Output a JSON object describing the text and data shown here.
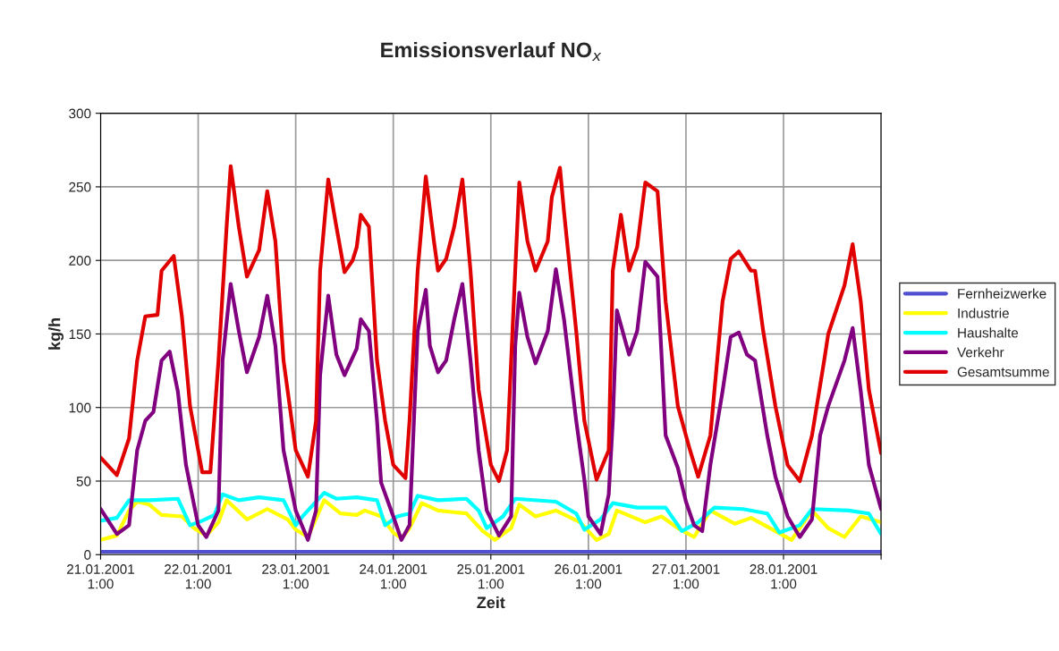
{
  "chart_data": {
    "type": "line",
    "title": "Emissionsverlauf NO$_{x}$",
    "xlabel": "Zeit",
    "ylabel": "kg/h",
    "xlim": [
      "2001-01-21T01:00",
      "2001-01-29T01:00"
    ],
    "xticks": [
      {
        "value": "2001-01-21T01:00",
        "label": "21.01.2001\n1:00"
      },
      {
        "value": "2001-01-22T01:00",
        "label": "22.01.2001\n1:00"
      },
      {
        "value": "2001-01-23T01:00",
        "label": "23.01.2001\n1:00"
      },
      {
        "value": "2001-01-24T01:00",
        "label": "24.01.2001\n1:00"
      },
      {
        "value": "2001-01-25T01:00",
        "label": "25.01.2001\n1:00"
      },
      {
        "value": "2001-01-26T01:00",
        "label": "26.01.2001\n1:00"
      },
      {
        "value": "2001-01-27T01:00",
        "label": "27.01.2001\n1:00"
      },
      {
        "value": "2001-01-28T01:00",
        "label": "28.01.2001\n1:00"
      },
      {
        "value": "2001-01-29T01:00",
        "label": null
      }
    ],
    "ylim": [
      0,
      300
    ],
    "yticks": [
      0,
      50,
      100,
      150,
      200,
      250,
      300
    ],
    "grid": true,
    "legend": "right",
    "series": [
      {
        "name": "Fernheizwerke",
        "color": "#5050d0",
        "x": [
          "2001-01-21T01:00",
          "2001-01-22T01:00",
          "2001-01-23T01:00",
          "2001-01-24T01:00",
          "2001-01-25T01:00",
          "2001-01-26T01:00",
          "2001-01-27T01:00",
          "2001-01-28T01:00",
          "2001-01-29T01:00"
        ],
        "values": [
          2,
          2,
          2,
          2,
          2,
          2,
          2,
          2,
          2
        ]
      },
      {
        "name": "Industrie",
        "color": "#ffff00",
        "x": [
          "2001-01-21T01:00",
          "2001-01-21T05:00",
          "2001-01-21T08:00",
          "2001-01-21T10:00",
          "2001-01-21T13:00",
          "2001-01-21T16:00",
          "2001-01-21T21:00",
          "2001-01-22T00:00",
          "2001-01-22T03:00",
          "2001-01-22T06:00",
          "2001-01-22T08:00",
          "2001-01-22T13:00",
          "2001-01-22T18:00",
          "2001-01-22T23:00",
          "2001-01-23T01:00",
          "2001-01-23T04:00",
          "2001-01-23T08:00",
          "2001-01-23T12:00",
          "2001-01-23T16:00",
          "2001-01-23T18:00",
          "2001-01-23T22:00",
          "2001-01-24T01:00",
          "2001-01-24T03:00",
          "2001-01-24T05:00",
          "2001-01-24T08:00",
          "2001-01-24T12:00",
          "2001-01-24T19:00",
          "2001-01-24T23:00",
          "2001-01-25T02:00",
          "2001-01-25T06:00",
          "2001-01-25T08:00",
          "2001-01-25T12:00",
          "2001-01-25T17:00",
          "2001-01-25T23:00",
          "2001-01-26T03:00",
          "2001-01-26T06:00",
          "2001-01-26T08:00",
          "2001-01-26T15:00",
          "2001-01-26T19:00",
          "2001-01-26T23:00",
          "2001-01-27T03:00",
          "2001-01-27T07:00",
          "2001-01-27T13:00",
          "2001-01-27T17:00",
          "2001-01-27T23:00",
          "2001-01-28T03:00",
          "2001-01-28T08:00",
          "2001-01-28T12:00",
          "2001-01-28T16:00",
          "2001-01-28T20:00",
          "2001-01-29T01:00"
        ],
        "values": [
          10,
          13,
          30,
          36,
          34,
          27,
          26,
          18,
          13,
          22,
          37,
          24,
          31,
          24,
          17,
          12,
          37,
          28,
          27,
          30,
          26,
          15,
          11,
          18,
          35,
          30,
          28,
          16,
          10,
          18,
          34,
          26,
          30,
          22,
          10,
          14,
          30,
          22,
          26,
          18,
          12,
          30,
          21,
          25,
          16,
          10,
          30,
          18,
          12,
          26,
          22
        ]
      },
      {
        "name": "Haushalte",
        "color": "#00ffff",
        "x": [
          "2001-01-21T01:00",
          "2001-01-21T05:00",
          "2001-01-21T08:00",
          "2001-01-21T13:00",
          "2001-01-21T20:00",
          "2001-01-21T23:00",
          "2001-01-22T02:00",
          "2001-01-22T05:00",
          "2001-01-22T07:00",
          "2001-01-22T11:00",
          "2001-01-22T16:00",
          "2001-01-22T22:00",
          "2001-01-23T01:00",
          "2001-01-23T03:00",
          "2001-01-23T08:00",
          "2001-01-23T11:00",
          "2001-01-23T16:00",
          "2001-01-23T21:00",
          "2001-01-23T23:00",
          "2001-01-24T02:00",
          "2001-01-24T05:00",
          "2001-01-24T07:00",
          "2001-01-24T12:00",
          "2001-01-24T19:00",
          "2001-01-24T22:00",
          "2001-01-25T00:00",
          "2001-01-25T04:00",
          "2001-01-25T07:00",
          "2001-01-25T17:00",
          "2001-01-25T22:00",
          "2001-01-26T00:00",
          "2001-01-26T04:00",
          "2001-01-26T07:00",
          "2001-01-26T13:00",
          "2001-01-26T20:00",
          "2001-01-27T00:00",
          "2001-01-27T04:00",
          "2001-01-27T08:00",
          "2001-01-27T15:00",
          "2001-01-27T21:00",
          "2001-01-28T00:00",
          "2001-01-28T05:00",
          "2001-01-28T08:00",
          "2001-01-28T17:00",
          "2001-01-28T22:00",
          "2001-01-29T01:00"
        ],
        "values": [
          23,
          25,
          37,
          37,
          38,
          20,
          23,
          27,
          41,
          37,
          39,
          37,
          20,
          27,
          42,
          38,
          39,
          37,
          20,
          26,
          28,
          40,
          37,
          38,
          30,
          18,
          26,
          38,
          36,
          28,
          17,
          24,
          35,
          32,
          32,
          16,
          22,
          32,
          31,
          28,
          15,
          20,
          31,
          30,
          28,
          14
        ]
      },
      {
        "name": "Verkehr",
        "color": "#800080",
        "x": [
          "2001-01-21T01:00",
          "2001-01-21T05:00",
          "2001-01-21T08:00",
          "2001-01-21T10:00",
          "2001-01-21T12:00",
          "2001-01-21T14:00",
          "2001-01-21T16:00",
          "2001-01-21T18:00",
          "2001-01-21T20:00",
          "2001-01-21T22:00",
          "2001-01-22T01:00",
          "2001-01-22T03:00",
          "2001-01-22T06:00",
          "2001-01-22T07:00",
          "2001-01-22T09:00",
          "2001-01-22T11:00",
          "2001-01-22T13:00",
          "2001-01-22T16:00",
          "2001-01-22T18:00",
          "2001-01-22T20:00",
          "2001-01-22T22:00",
          "2001-01-23T01:00",
          "2001-01-23T04:00",
          "2001-01-23T06:00",
          "2001-01-23T07:00",
          "2001-01-23T09:00",
          "2001-01-23T11:00",
          "2001-01-23T13:00",
          "2001-01-23T16:00",
          "2001-01-23T17:00",
          "2001-01-23T19:00",
          "2001-01-23T21:00",
          "2001-01-23T22:00",
          "2001-01-24T01:00",
          "2001-01-24T03:00",
          "2001-01-24T05:00",
          "2001-01-24T07:00",
          "2001-01-24T09:00",
          "2001-01-24T10:00",
          "2001-01-24T12:00",
          "2001-01-24T14:00",
          "2001-01-24T16:00",
          "2001-01-24T18:00",
          "2001-01-24T20:00",
          "2001-01-24T22:00",
          "2001-01-25T00:00",
          "2001-01-25T03:00",
          "2001-01-25T06:00",
          "2001-01-25T07:00",
          "2001-01-25T08:00",
          "2001-01-25T10:00",
          "2001-01-25T12:00",
          "2001-01-25T15:00",
          "2001-01-25T17:00",
          "2001-01-25T19:00",
          "2001-01-25T22:00",
          "2001-01-26T00:00",
          "2001-01-26T01:00",
          "2001-01-26T04:00",
          "2001-01-26T06:00",
          "2001-01-26T07:00",
          "2001-01-26T08:00",
          "2001-01-26T11:00",
          "2001-01-26T13:00",
          "2001-01-26T15:00",
          "2001-01-26T18:00",
          "2001-01-26T20:00",
          "2001-01-26T23:00",
          "2001-01-27T01:00",
          "2001-01-27T03:00",
          "2001-01-27T05:00",
          "2001-01-27T07:00",
          "2001-01-27T10:00",
          "2001-01-27T12:00",
          "2001-01-27T14:00",
          "2001-01-27T16:00",
          "2001-01-27T18:00",
          "2001-01-27T21:00",
          "2001-01-27T23:00",
          "2001-01-28T02:00",
          "2001-01-28T05:00",
          "2001-01-28T08:00",
          "2001-01-28T10:00",
          "2001-01-28T12:00",
          "2001-01-28T16:00",
          "2001-01-28T18:00",
          "2001-01-28T20:00",
          "2001-01-28T22:00",
          "2001-01-29T01:00"
        ],
        "values": [
          31,
          14,
          20,
          71,
          91,
          97,
          132,
          138,
          111,
          61,
          20,
          12,
          30,
          132,
          184,
          152,
          124,
          148,
          176,
          142,
          71,
          30,
          10,
          30,
          122,
          176,
          136,
          122,
          140,
          160,
          152,
          91,
          49,
          26,
          10,
          20,
          152,
          180,
          142,
          124,
          132,
          160,
          184,
          132,
          71,
          30,
          13,
          26,
          142,
          178,
          148,
          130,
          152,
          194,
          160,
          91,
          51,
          26,
          14,
          41,
          91,
          166,
          136,
          152,
          199,
          189,
          81,
          59,
          36,
          20,
          16,
          61,
          111,
          148,
          151,
          136,
          132,
          81,
          53,
          26,
          12,
          24,
          81,
          101,
          132,
          154,
          111,
          61,
          31
        ]
      },
      {
        "name": "Gesamtsumme",
        "color": "#e00000",
        "x": [
          "2001-01-21T01:00",
          "2001-01-21T05:00",
          "2001-01-21T08:00",
          "2001-01-21T10:00",
          "2001-01-21T12:00",
          "2001-01-21T15:00",
          "2001-01-21T16:00",
          "2001-01-21T19:00",
          "2001-01-21T21:00",
          "2001-01-21T23:00",
          "2001-01-22T02:00",
          "2001-01-22T04:00",
          "2001-01-22T06:00",
          "2001-01-22T08:00",
          "2001-01-22T09:00",
          "2001-01-22T11:00",
          "2001-01-22T13:00",
          "2001-01-22T16:00",
          "2001-01-22T18:00",
          "2001-01-22T20:00",
          "2001-01-22T22:00",
          "2001-01-23T01:00",
          "2001-01-23T04:00",
          "2001-01-23T06:00",
          "2001-01-23T07:00",
          "2001-01-23T09:00",
          "2001-01-23T11:00",
          "2001-01-23T13:00",
          "2001-01-23T15:00",
          "2001-01-23T16:00",
          "2001-01-23T17:00",
          "2001-01-23T19:00",
          "2001-01-23T21:00",
          "2001-01-23T23:00",
          "2001-01-24T01:00",
          "2001-01-24T04:00",
          "2001-01-24T05:00",
          "2001-01-24T07:00",
          "2001-01-24T09:00",
          "2001-01-24T11:00",
          "2001-01-24T12:00",
          "2001-01-24T14:00",
          "2001-01-24T16:00",
          "2001-01-24T18:00",
          "2001-01-24T20:00",
          "2001-01-24T22:00",
          "2001-01-25T01:00",
          "2001-01-25T03:00",
          "2001-01-25T05:00",
          "2001-01-25T07:00",
          "2001-01-25T08:00",
          "2001-01-25T10:00",
          "2001-01-25T12:00",
          "2001-01-25T15:00",
          "2001-01-25T16:00",
          "2001-01-25T18:00",
          "2001-01-25T19:00",
          "2001-01-25T22:00",
          "2001-01-26T00:00",
          "2001-01-26T03:00",
          "2001-01-26T06:00",
          "2001-01-26T07:00",
          "2001-01-26T09:00",
          "2001-01-26T11:00",
          "2001-01-26T13:00",
          "2001-01-26T15:00",
          "2001-01-26T18:00",
          "2001-01-26T20:00",
          "2001-01-26T23:00",
          "2001-01-27T02:00",
          "2001-01-27T04:00",
          "2001-01-27T07:00",
          "2001-01-27T10:00",
          "2001-01-27T12:00",
          "2001-01-27T14:00",
          "2001-01-27T17:00",
          "2001-01-27T18:00",
          "2001-01-27T20:00",
          "2001-01-27T23:00",
          "2001-01-28T02:00",
          "2001-01-28T05:00",
          "2001-01-28T08:00",
          "2001-01-28T11:00",
          "2001-01-28T12:00",
          "2001-01-28T16:00",
          "2001-01-28T18:00",
          "2001-01-28T20:00",
          "2001-01-28T22:00",
          "2001-01-29T01:00"
        ],
        "values": [
          66,
          54,
          79,
          132,
          162,
          163,
          193,
          203,
          162,
          101,
          56,
          56,
          132,
          223,
          264,
          223,
          189,
          207,
          247,
          213,
          132,
          71,
          53,
          91,
          193,
          255,
          223,
          192,
          200,
          209,
          231,
          223,
          132,
          91,
          61,
          52,
          91,
          193,
          257,
          213,
          193,
          201,
          223,
          255,
          193,
          112,
          61,
          50,
          71,
          193,
          253,
          213,
          193,
          213,
          243,
          263,
          233,
          152,
          91,
          51,
          71,
          193,
          231,
          193,
          209,
          253,
          247,
          172,
          101,
          71,
          53,
          81,
          172,
          201,
          206,
          193,
          193,
          152,
          101,
          61,
          50,
          81,
          132,
          150,
          183,
          211,
          172,
          112,
          69
        ]
      }
    ]
  }
}
